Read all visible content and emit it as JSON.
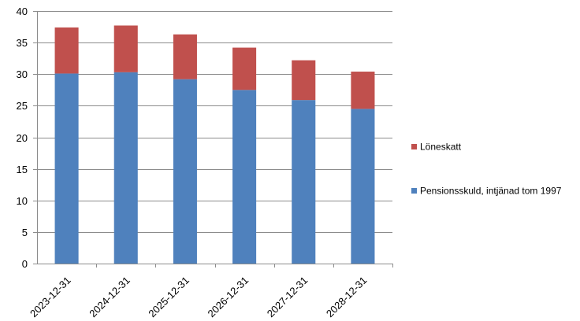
{
  "chart_data": {
    "type": "bar",
    "stacked": true,
    "title": "",
    "xlabel": "",
    "ylabel": "",
    "categories": [
      "2023-12-31",
      "2024-12-31",
      "2025-12-31",
      "2026-12-31",
      "2027-12-31",
      "2028-12-31"
    ],
    "series": [
      {
        "name": "Pensionsskuld, intjänad tom 1997",
        "color": "#4F81BD",
        "values": [
          30.1,
          30.3,
          29.2,
          27.5,
          25.9,
          24.5
        ]
      },
      {
        "name": "Löneskatt",
        "color": "#C0504D",
        "values": [
          7.3,
          7.4,
          7.1,
          6.7,
          6.3,
          5.9
        ]
      }
    ],
    "ylim": [
      0,
      40
    ],
    "yticks": [
      0,
      5,
      10,
      15,
      20,
      25,
      30,
      35,
      40
    ],
    "grid": true,
    "legend_position": "right",
    "legend_order": [
      "Löneskatt",
      "Pensionsskuld, intjänad tom 1997"
    ]
  }
}
